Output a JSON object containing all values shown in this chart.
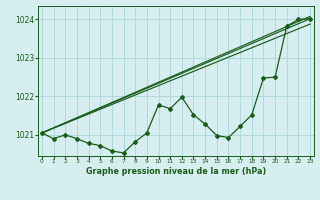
{
  "title": "Graphe pression niveau de la mer (hPa)",
  "background_color": "#d6eef0",
  "grid_color": "#b0d8dc",
  "line_color": "#1a5c1a",
  "x_ticks": [
    0,
    1,
    2,
    3,
    4,
    5,
    6,
    7,
    8,
    9,
    10,
    11,
    12,
    13,
    14,
    15,
    16,
    17,
    18,
    19,
    20,
    21,
    22,
    23
  ],
  "ylim": [
    1020.45,
    1024.35
  ],
  "yticks": [
    1021,
    1022,
    1023,
    1024
  ],
  "main_series": [
    1021.05,
    1020.9,
    1021.0,
    1020.9,
    1020.78,
    1020.72,
    1020.58,
    1020.53,
    1020.82,
    1021.05,
    1021.78,
    1021.68,
    1021.98,
    1021.52,
    1021.28,
    1020.98,
    1020.93,
    1021.22,
    1021.52,
    1022.48,
    1022.5,
    1023.83,
    1024.0,
    1024.02
  ],
  "trend1_y0": 1021.05,
  "trend1_y1": 1024.08,
  "trend2_y0": 1021.05,
  "trend2_y1": 1023.88,
  "trend3_y0": 1021.05,
  "trend3_y1": 1024.02,
  "xlim": [
    -0.3,
    23.3
  ]
}
